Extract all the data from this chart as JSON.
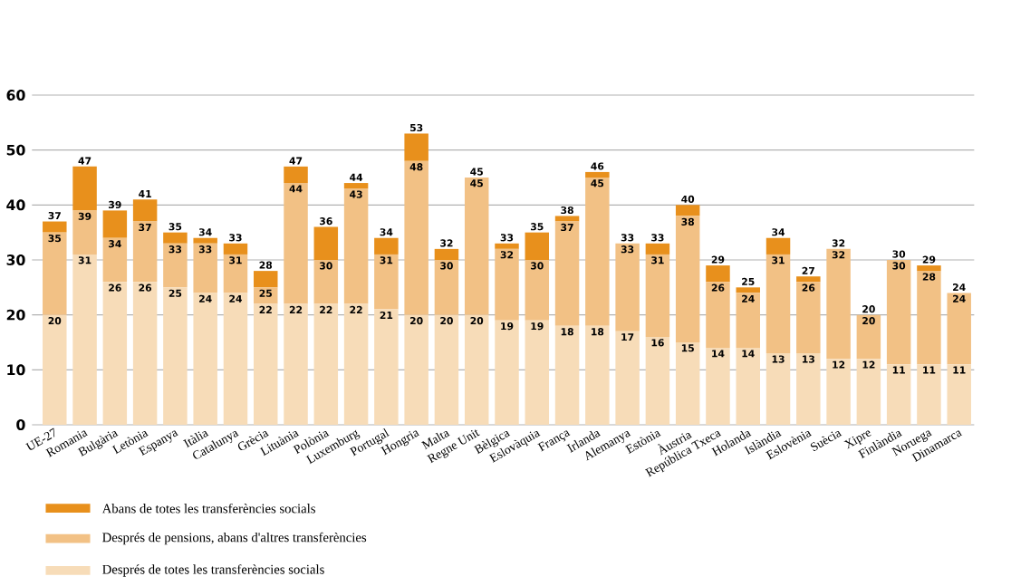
{
  "chart_data": {
    "type": "bar",
    "stacked": true,
    "categories": [
      "UE-27",
      "Romania",
      "Bulgària",
      "Letònia",
      "Espanya",
      "Itàlia",
      "Catalunya",
      "Grècia",
      "Lituània",
      "Polònia",
      "Luxemburg",
      "Portugal",
      "Hongria",
      "Malta",
      "Regne Unit",
      "Bèlgica",
      "Eslovàquia",
      "França",
      "Irlanda",
      "Alemanya",
      "Estònia",
      "Àustria",
      "República Txeca",
      "Holanda",
      "Islàndia",
      "Eslovènia",
      "Suècia",
      "Xipre",
      "Finlàndia",
      "Noruega",
      "Dinamarca"
    ],
    "series": [
      {
        "name": "Després de totes les transferències socials",
        "color": "#f7dcb8",
        "values": [
          20,
          31,
          26,
          26,
          25,
          24,
          24,
          22,
          22,
          22,
          22,
          21,
          20,
          20,
          20,
          19,
          19,
          18,
          18,
          17,
          16,
          15,
          14,
          14,
          13,
          13,
          12,
          12,
          11,
          11,
          11
        ],
        "value_labels": [
          "20",
          "31",
          "26",
          "26",
          "25",
          "24",
          "24",
          "22",
          "22",
          "22",
          "22",
          "21",
          "20",
          "20",
          "20",
          "19",
          "19",
          "18",
          "18",
          "17",
          "16",
          "15",
          "14",
          "14",
          "13",
          "13",
          "12",
          "12",
          "11",
          "11",
          "11"
        ]
      },
      {
        "name": "Després de pensions, abans d'altres transferències",
        "color": "#f2c185",
        "values": [
          15,
          8,
          8,
          11,
          8,
          9,
          7,
          3,
          22,
          8,
          21,
          10,
          28,
          10,
          25,
          13,
          11,
          19,
          27,
          16,
          15,
          23,
          12,
          10,
          18,
          13,
          20,
          8,
          19,
          17,
          13
        ]
      },
      {
        "name": "Abans de totes les transferències socials",
        "color": "#e8901c",
        "values": [
          2,
          8,
          5,
          4,
          2,
          1,
          2,
          3,
          3,
          6,
          1,
          3,
          5,
          2,
          0,
          1,
          5,
          1,
          1,
          0,
          2,
          2,
          3,
          1,
          3,
          1,
          0,
          0,
          0,
          1,
          0
        ]
      }
    ],
    "totals": [
      "37",
      "47",
      "39",
      "41",
      "35",
      "34",
      "33",
      "28",
      "47",
      "36",
      "44",
      "34",
      "53",
      "32",
      "45",
      "33",
      "35",
      "38",
      "46",
      "33",
      "33",
      "40",
      "29",
      "25",
      "34",
      "27",
      "32",
      "20",
      "30",
      "29",
      "24"
    ],
    "annotations": [
      {
        "text": "35",
        "x": "UE-27",
        "y": 35
      },
      {
        "text": "39",
        "x": "Romania",
        "y": 39
      },
      {
        "text": "34",
        "x": "Bulgària",
        "y": 34
      },
      {
        "text": "37",
        "x": "Letònia",
        "y": 37
      },
      {
        "text": "33",
        "x": "Espanya",
        "y": 33
      },
      {
        "text": "33",
        "x": "Itàlia",
        "y": 33
      },
      {
        "text": "31",
        "x": "Catalunya",
        "y": 31
      },
      {
        "text": "25",
        "x": "Grècia",
        "y": 25
      },
      {
        "text": "44",
        "x": "Lituània",
        "y": 44
      },
      {
        "text": "30",
        "x": "Polònia",
        "y": 30
      },
      {
        "text": "43",
        "x": "Luxemburg",
        "y": 43
      },
      {
        "text": "31",
        "x": "Portugal",
        "y": 31
      },
      {
        "text": "48",
        "x": "Hongria",
        "y": 48
      },
      {
        "text": "30",
        "x": "Malta",
        "y": 30
      },
      {
        "text": "45",
        "x": "Regne Unit",
        "y": 45
      },
      {
        "text": "32",
        "x": "Bèlgica",
        "y": 32
      },
      {
        "text": "30",
        "x": "Eslovàquia",
        "y": 30
      },
      {
        "text": "37",
        "x": "França",
        "y": 37
      },
      {
        "text": "45",
        "x": "Irlanda",
        "y": 45
      },
      {
        "text": "33",
        "x": "Alemanya",
        "y": 33
      },
      {
        "text": "31",
        "x": "Estònia",
        "y": 31
      },
      {
        "text": "38",
        "x": "Àustria",
        "y": 38
      },
      {
        "text": "26",
        "x": "República Txeca",
        "y": 26
      },
      {
        "text": "24",
        "x": "Holanda",
        "y": 24
      },
      {
        "text": "31",
        "x": "Islàndia",
        "y": 31
      },
      {
        "text": "26",
        "x": "Eslovènia",
        "y": 26
      },
      {
        "text": "32",
        "x": "Suècia",
        "y": 32
      },
      {
        "text": "20",
        "x": "Xipre",
        "y": 20
      },
      {
        "text": "30",
        "x": "Finlàndia",
        "y": 30
      },
      {
        "text": "28",
        "x": "Noruega",
        "y": 28
      },
      {
        "text": "24",
        "x": "Dinamarca",
        "y": 24
      }
    ],
    "ylim": [
      0,
      60
    ],
    "yticks": [
      0,
      10,
      20,
      30,
      40,
      50,
      60
    ],
    "grid": "y",
    "legend": "bottom"
  }
}
